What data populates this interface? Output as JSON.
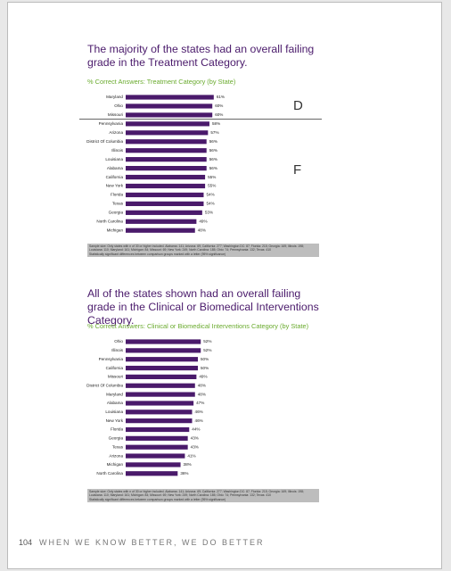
{
  "chart_data": [
    {
      "type": "bar",
      "orientation": "horizontal",
      "title": "The majority of the states had an overall failing grade in the Treatment Category.",
      "subtitle": "% Correct Answers: Treatment Category (by State)",
      "categories": [
        "Maryland",
        "Ohio",
        "Missouri",
        "Pennsylvania",
        "Arizona",
        "District Of Columbia",
        "Illinois",
        "Louisiana",
        "Alabama",
        "California",
        "New York",
        "Florida",
        "Texas",
        "Georgia",
        "North Carolina",
        "Michigan"
      ],
      "values": [
        61,
        60,
        60,
        58,
        57,
        56,
        56,
        56,
        56,
        55,
        55,
        54,
        54,
        53,
        49,
        48
      ],
      "value_labels": [
        "61%",
        "60%",
        "60%",
        "58%",
        "57%",
        "56%",
        "56%",
        "56%",
        "56%",
        "55%",
        "55%",
        "54%",
        "54%",
        "53%",
        "49%",
        "48%"
      ],
      "color": "#4a1a6b",
      "annotations": [
        "D",
        "F"
      ],
      "note": [
        "Sample size: Only states with n of 30 or higher included. Alabama: 141; Arizona: 69; California: 277; Washington DC: 87; Florida: 215; Georgia: 169; Illinois: 198; Louisiana: 110; Maryland: 161; Michigan: 84; Missouri: 69; New York: 249; North Carolina: 185; Ohio: 74; Pennsylvania: 132; Texas: 410",
        "Statistically significant differences between comparison groups marked with a letter (95% significance)"
      ]
    },
    {
      "type": "bar",
      "orientation": "horizontal",
      "title": "All of the states shown had an overall failing grade in the Clinical or Biomedical Interventions Category.",
      "subtitle": "% Correct Answers: Clinical or Biomedical Interventions Category (by State)",
      "categories": [
        "Ohio",
        "Illinois",
        "Pennsylvania",
        "California",
        "Missouri",
        "District Of Columbia",
        "Maryland",
        "Alabama",
        "Louisiana",
        "New York",
        "Florida",
        "Georgia",
        "Texas",
        "Arizona",
        "Michigan",
        "North Carolina"
      ],
      "values": [
        52,
        52,
        50,
        50,
        49,
        48,
        48,
        47,
        46,
        46,
        44,
        43,
        43,
        41,
        38,
        36
      ],
      "value_labels": [
        "52%",
        "52%",
        "50%",
        "50%",
        "49%",
        "48%",
        "48%",
        "47%",
        "46%",
        "46%",
        "44%",
        "43%",
        "43%",
        "41%",
        "38%",
        "36%"
      ],
      "color": "#4a1a6b",
      "note": [
        "Sample size: Only states with n of 30 or higher included. Alabama: 141; Arizona: 69; California: 277; Washington DC: 87; Florida: 215; Georgia: 169; Illinois: 198; Louisiana: 110; Maryland: 161; Michigan: 84; Missouri: 69; New York: 249; North Carolina: 185; Ohio: 74; Pennsylvania: 132; Texas: 410",
        "Statistically significant differences between comparison groups marked with a letter (95% significance)"
      ]
    }
  ],
  "footer": {
    "page_number": "104",
    "text": "WHEN WE KNOW BETTER, WE DO BETTER"
  }
}
